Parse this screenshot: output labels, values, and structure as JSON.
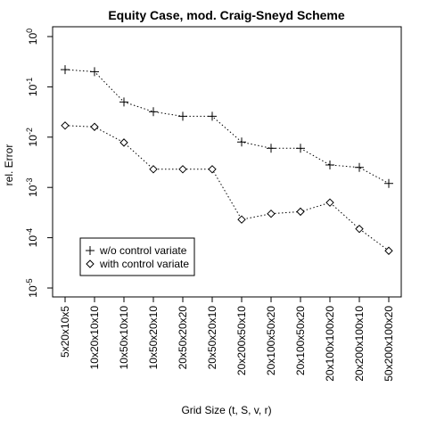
{
  "chart_data": {
    "type": "line",
    "title": "Equity Case, mod. Craig-Sneyd Scheme",
    "xlabel": "Grid Size (t, S, v, r)",
    "ylabel": "rel. Error",
    "y_scale": "log10",
    "ylim": [
      1e-05,
      1
    ],
    "y_ticks": [
      {
        "value": 1,
        "base": "10",
        "exp": "0"
      },
      {
        "value": 0.1,
        "base": "10",
        "exp": "-1"
      },
      {
        "value": 0.01,
        "base": "10",
        "exp": "-2"
      },
      {
        "value": 0.001,
        "base": "10",
        "exp": "-3"
      },
      {
        "value": 0.0001,
        "base": "10",
        "exp": "-4"
      },
      {
        "value": 1e-05,
        "base": "10",
        "exp": "-5"
      }
    ],
    "categories": [
      "5x20x10x5",
      "10x20x10x10",
      "10x50x10x10",
      "10x50x20x10",
      "20x50x20x20",
      "20x50x20x10",
      "20x200x50x10",
      "20x100x50x20",
      "20x100x50x20",
      "20x100x100x20",
      "20x200x100x10",
      "50x200x100x20"
    ],
    "series": [
      {
        "name": "w/o control variate",
        "marker": "plus",
        "values": [
          0.22,
          0.2,
          0.05,
          0.032,
          0.026,
          0.026,
          0.008,
          0.006,
          0.006,
          0.0028,
          0.0025,
          0.0012
        ]
      },
      {
        "name": "with control variate",
        "marker": "diamond",
        "values": [
          0.017,
          0.016,
          0.0078,
          0.0023,
          0.0023,
          0.0023,
          0.00023,
          0.0003,
          0.00033,
          0.0005,
          0.00015,
          5.5e-05
        ]
      }
    ],
    "legend_position": "bottom-left",
    "grid": false,
    "line_style": "dotted"
  }
}
